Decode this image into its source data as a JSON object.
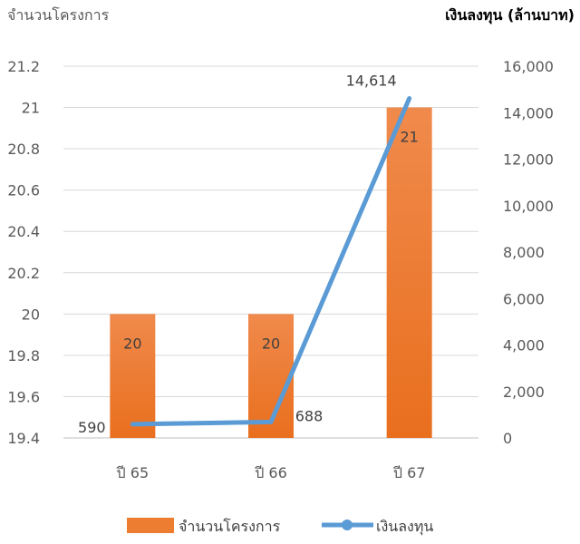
{
  "chart_data": {
    "type": "bar",
    "categories": [
      "ปี 65",
      "ปี 66",
      "ปี 67"
    ],
    "ylabel": "จำนวนโครงการ",
    "y2label": "เงินลงทุน  (ล้านบาท)",
    "ylim": [
      19.4,
      21.2
    ],
    "y2lim": [
      0,
      16000
    ],
    "yticks": [
      "19.4",
      "19.6",
      "19.8",
      "20",
      "20.2",
      "20.4",
      "20.6",
      "20.8",
      "21",
      "21.2"
    ],
    "y2ticks": [
      "0",
      "2,000",
      "4,000",
      "6,000",
      "8,000",
      "10,000",
      "12,000",
      "14,000",
      "16,000"
    ],
    "grid": true,
    "legend_position": "bottom",
    "series": [
      {
        "name": "จำนวนโครงการ",
        "type": "bar",
        "axis": "left",
        "color": "#ED7D31",
        "values": [
          20,
          20,
          21
        ],
        "labels": [
          "20",
          "20",
          "21"
        ]
      },
      {
        "name": "เงินลงทุน",
        "type": "line",
        "axis": "right",
        "color": "#5B9BD5",
        "values": [
          590,
          688,
          14614
        ],
        "labels": [
          "590",
          "688",
          "14,614"
        ]
      }
    ]
  }
}
